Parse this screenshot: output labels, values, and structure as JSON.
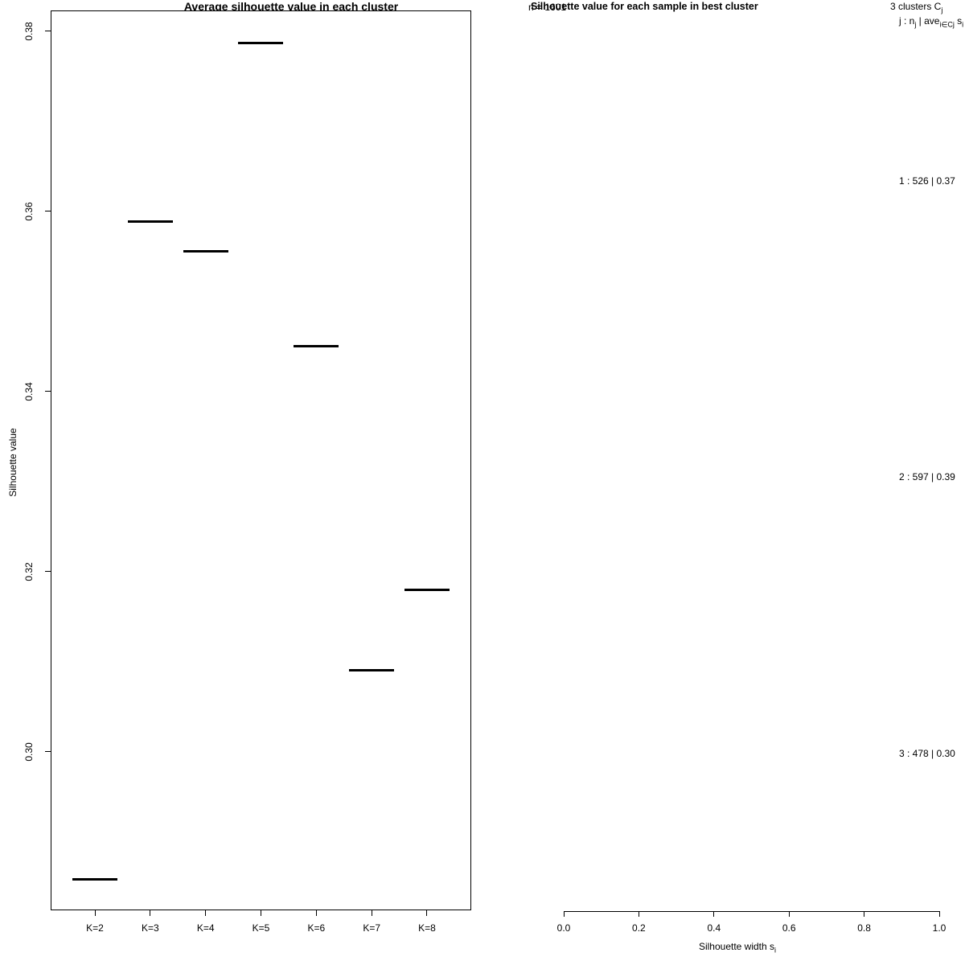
{
  "chart_data": [
    {
      "type": "line-segments",
      "panel": "left",
      "title": "Average silhouette value in each cluster",
      "xlabel": "",
      "ylabel": "Silhouette value",
      "categories": [
        "K=2",
        "K=3",
        "K=4",
        "K=5",
        "K=6",
        "K=7",
        "K=8"
      ],
      "values": [
        0.2858,
        0.3588,
        0.3555,
        0.3786,
        0.345,
        0.309,
        0.3179
      ],
      "y_ticks": [
        0.38,
        0.36,
        0.34,
        0.32,
        0.3
      ],
      "y_tick_labels": [
        "0.38",
        "0.36",
        "0.34",
        "0.32",
        "0.30"
      ],
      "ylim": [
        0.2823,
        0.3823
      ],
      "grid": false,
      "marker_color": "#000000",
      "frame": true
    },
    {
      "type": "silhouette",
      "panel": "right",
      "title": "Silhouette value for each sample in best cluster",
      "n_label": "n = 1601",
      "header_line1": {
        "text": "3  clusters  C",
        "sub": "j"
      },
      "header_line2": {
        "p1": "j :  n",
        "s1": "j",
        "p2": " | ave",
        "s2": "i∈Cj",
        "p3": "  s",
        "s3": "i"
      },
      "clusters": [
        {
          "id": 1,
          "n": 526,
          "ave_width": 0.37,
          "label": "1 :  526  |  0.37"
        },
        {
          "id": 2,
          "n": 597,
          "ave_width": 0.39,
          "label": "2 :  597  |  0.39"
        },
        {
          "id": 3,
          "n": 478,
          "ave_width": 0.3,
          "label": "3 :  478  |  0.30"
        }
      ],
      "x_ticks": [
        0.0,
        0.2,
        0.4,
        0.6,
        0.8,
        1.0
      ],
      "x_tick_labels": [
        "0.0",
        "0.2",
        "0.4",
        "0.6",
        "0.8",
        "1.0"
      ],
      "xlabel": {
        "text": "Silhouette width s",
        "sub": "i"
      },
      "xlim": [
        0,
        1
      ],
      "grid": false,
      "bars_visible": false
    }
  ],
  "colors": {
    "foreground": "#000000",
    "background": "#ffffff"
  }
}
